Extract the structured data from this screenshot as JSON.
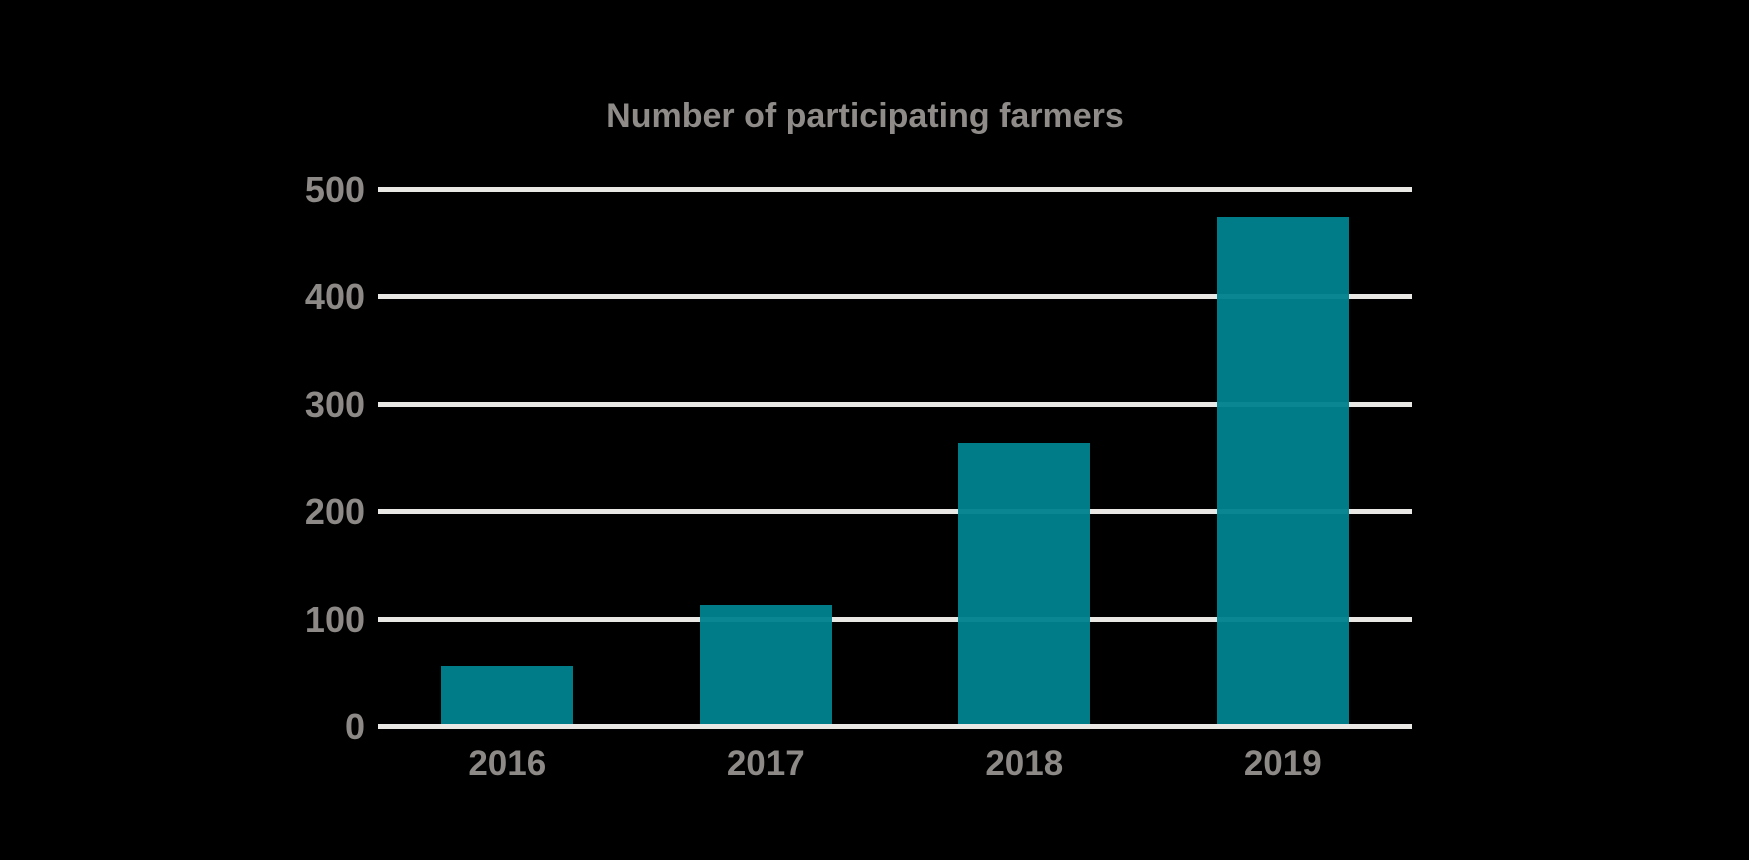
{
  "chart_data": {
    "type": "bar",
    "title": "Number of participating farmers",
    "categories": [
      "2016",
      "2017",
      "2018",
      "2019"
    ],
    "values": [
      54,
      111,
      262,
      472
    ],
    "xlabel": "",
    "ylabel": "",
    "ylim": [
      0,
      500
    ],
    "yticks": [
      0,
      100,
      200,
      300,
      400,
      500
    ],
    "grid": "horizontal-gridlines-on",
    "legend": "none",
    "colors": {
      "bar": "#00818F",
      "gridline": "#E9E8E5",
      "label_text": "#8C8987",
      "title_text": "#8E8B89",
      "background": "#000000"
    }
  }
}
